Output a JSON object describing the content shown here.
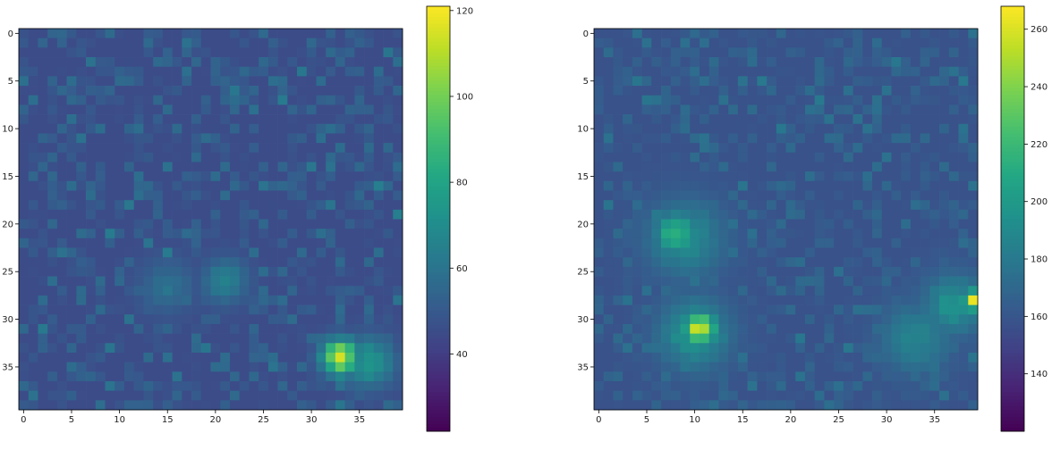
{
  "chart_data": [
    {
      "type": "heatmap",
      "colormap": "viridis",
      "grid_size": [
        40,
        40
      ],
      "x_ticks": [
        0,
        5,
        10,
        15,
        20,
        25,
        30,
        35
      ],
      "y_ticks": [
        0,
        5,
        10,
        15,
        20,
        25,
        30,
        35
      ],
      "colorbar_ticks": [
        40,
        60,
        80,
        100,
        120
      ],
      "value_range": [
        22,
        121
      ],
      "background_mean": 45,
      "background_spread": 10,
      "hotspots": [
        {
          "x": 33,
          "y": 34,
          "peak": 121,
          "sigma": 1.3
        },
        {
          "x": 36,
          "y": 34.5,
          "peak": 78,
          "sigma": 1.8
        },
        {
          "x": 21,
          "y": 26,
          "peak": 70,
          "sigma": 1.6
        },
        {
          "x": 15,
          "y": 26.5,
          "peak": 60,
          "sigma": 2.0
        }
      ],
      "title": "",
      "xlabel": "",
      "ylabel": ""
    },
    {
      "type": "heatmap",
      "colormap": "viridis",
      "grid_size": [
        40,
        40
      ],
      "x_ticks": [
        0,
        5,
        10,
        15,
        20,
        25,
        30,
        35
      ],
      "y_ticks": [
        0,
        5,
        10,
        15,
        20,
        25,
        30,
        35
      ],
      "colorbar_ticks": [
        140,
        160,
        180,
        200,
        220,
        240,
        260
      ],
      "value_range": [
        120,
        268
      ],
      "background_mean": 158,
      "background_spread": 12,
      "hotspots": [
        {
          "x": 10.5,
          "y": 31,
          "peak": 268,
          "sigma": 1.2
        },
        {
          "x": 10,
          "y": 31.5,
          "peak": 205,
          "sigma": 2.5
        },
        {
          "x": 8,
          "y": 21,
          "peak": 225,
          "sigma": 1.5
        },
        {
          "x": 9,
          "y": 21.5,
          "peak": 195,
          "sigma": 2.8
        },
        {
          "x": 39,
          "y": 28,
          "peak": 268,
          "sigma": 0.8
        },
        {
          "x": 37,
          "y": 28.5,
          "peak": 200,
          "sigma": 2.2
        },
        {
          "x": 33,
          "y": 32,
          "peak": 190,
          "sigma": 2.5
        }
      ],
      "title": "",
      "xlabel": "",
      "ylabel": ""
    }
  ]
}
